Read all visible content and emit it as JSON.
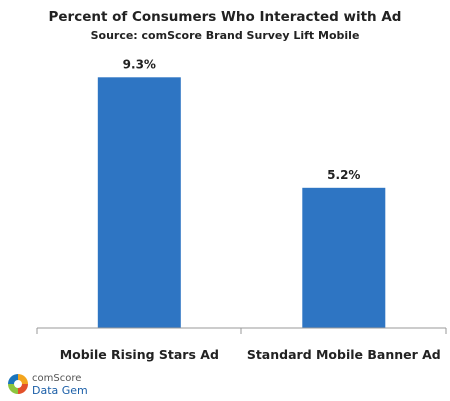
{
  "chart_data": {
    "type": "bar",
    "title": "Percent of Consumers Who Interacted with Ad",
    "subtitle": "Source: comScore Brand Survey Lift Mobile",
    "categories": [
      "Mobile Rising Stars Ad",
      "Standard Mobile Banner Ad"
    ],
    "values": [
      9.3,
      5.2
    ],
    "data_labels": [
      "9.3%",
      "5.2%"
    ],
    "xlabel": "",
    "ylabel": "",
    "ylim": [
      0,
      10.5
    ],
    "grid": false,
    "legend": "none",
    "bar_color": "#2e75c3"
  },
  "logo": {
    "line1": "comScore",
    "line2": "Data Gem",
    "colors": [
      "#f3a51e",
      "#e2512a",
      "#8cc63f",
      "#1b75bc"
    ]
  }
}
